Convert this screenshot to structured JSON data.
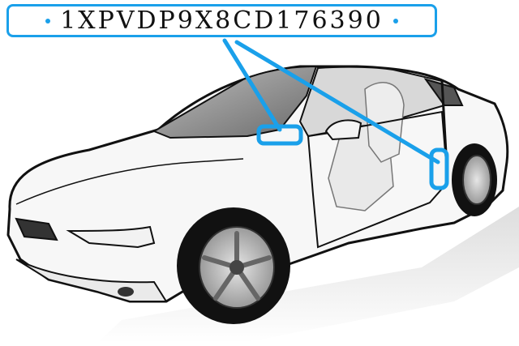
{
  "vin_label": {
    "vin": "1XPVDP9X8CD176390",
    "dot_left": "•",
    "dot_right": "•",
    "accent_color": "#1aa0ea"
  },
  "illustration": {
    "subject": "car-side-view",
    "markers": [
      "dashboard-vin-location",
      "door-jamb-vin-location"
    ]
  }
}
